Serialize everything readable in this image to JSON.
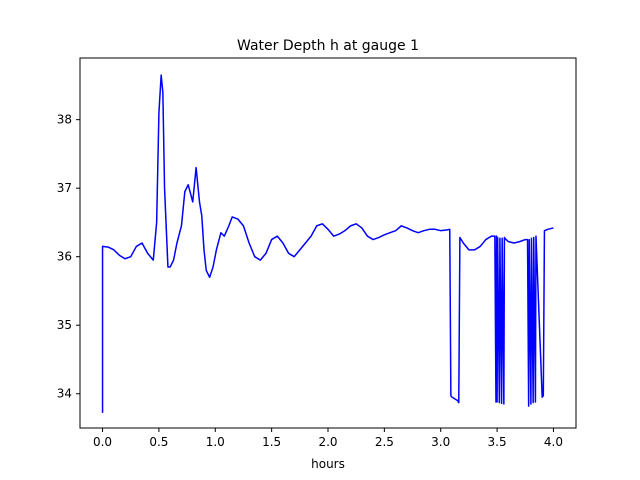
{
  "chart_data": {
    "type": "line",
    "title": "Water Depth h at gauge 1",
    "xlabel": "hours",
    "ylabel": "",
    "xlim": [
      -0.2,
      4.2
    ],
    "ylim": [
      33.5,
      38.9
    ],
    "xticks": [
      0.0,
      0.5,
      1.0,
      1.5,
      2.0,
      2.5,
      3.0,
      3.5,
      4.0
    ],
    "xtick_labels": [
      "0.0",
      "0.5",
      "1.0",
      "1.5",
      "2.0",
      "2.5",
      "3.0",
      "3.5",
      "4.0"
    ],
    "yticks": [
      34,
      35,
      36,
      37,
      38
    ],
    "ytick_labels": [
      "34",
      "35",
      "36",
      "37",
      "38"
    ],
    "grid": false,
    "series": [
      {
        "color": "#0000ff",
        "x": [
          0.0,
          0.0,
          0.05,
          0.1,
          0.15,
          0.2,
          0.25,
          0.3,
          0.35,
          0.4,
          0.45,
          0.48,
          0.5,
          0.52,
          0.535,
          0.55,
          0.58,
          0.6,
          0.63,
          0.66,
          0.7,
          0.73,
          0.76,
          0.8,
          0.83,
          0.86,
          0.88,
          0.9,
          0.92,
          0.95,
          0.98,
          1.01,
          1.05,
          1.08,
          1.12,
          1.15,
          1.2,
          1.25,
          1.3,
          1.35,
          1.4,
          1.45,
          1.5,
          1.55,
          1.6,
          1.65,
          1.7,
          1.75,
          1.8,
          1.85,
          1.9,
          1.95,
          2.0,
          2.05,
          2.1,
          2.15,
          2.2,
          2.25,
          2.3,
          2.35,
          2.4,
          2.45,
          2.5,
          2.55,
          2.6,
          2.65,
          2.7,
          2.75,
          2.8,
          2.85,
          2.9,
          2.95,
          3.0,
          3.05,
          3.08,
          3.09,
          3.1,
          3.15,
          3.16,
          3.17,
          3.2,
          3.25,
          3.3,
          3.35,
          3.4,
          3.45,
          3.48,
          3.49,
          3.495,
          3.5,
          3.505,
          3.52,
          3.525,
          3.54,
          3.545,
          3.56,
          3.565,
          3.58,
          3.6,
          3.65,
          3.7,
          3.75,
          3.77,
          3.78,
          3.785,
          3.8,
          3.805,
          3.82,
          3.825,
          3.84,
          3.845,
          3.9,
          3.91,
          3.92,
          3.95,
          4.0
        ],
        "y": [
          33.72,
          36.15,
          36.14,
          36.1,
          36.02,
          35.97,
          36.0,
          36.15,
          36.2,
          36.05,
          35.95,
          36.5,
          38.1,
          38.65,
          38.4,
          37.0,
          35.85,
          35.85,
          35.95,
          36.2,
          36.45,
          36.95,
          37.05,
          36.8,
          37.3,
          36.8,
          36.6,
          36.1,
          35.8,
          35.7,
          35.85,
          36.1,
          36.35,
          36.3,
          36.45,
          36.58,
          36.55,
          36.45,
          36.2,
          36.0,
          35.95,
          36.05,
          36.25,
          36.3,
          36.2,
          36.05,
          36.0,
          36.1,
          36.2,
          36.3,
          36.45,
          36.48,
          36.4,
          36.3,
          36.33,
          36.38,
          36.45,
          36.48,
          36.42,
          36.3,
          36.25,
          36.28,
          36.32,
          36.35,
          36.38,
          36.45,
          36.42,
          36.38,
          36.35,
          36.38,
          36.4,
          36.4,
          36.38,
          36.39,
          36.4,
          33.97,
          33.95,
          33.9,
          33.87,
          36.28,
          36.2,
          36.1,
          36.1,
          36.15,
          36.25,
          36.3,
          36.3,
          33.88,
          36.3,
          33.88,
          36.28,
          33.87,
          36.27,
          33.86,
          36.27,
          33.85,
          36.28,
          36.25,
          36.22,
          36.2,
          36.22,
          36.25,
          36.25,
          33.82,
          36.25,
          33.85,
          36.27,
          33.87,
          36.28,
          33.88,
          36.3,
          33.95,
          33.97,
          36.38,
          36.4,
          36.42
        ]
      }
    ]
  }
}
